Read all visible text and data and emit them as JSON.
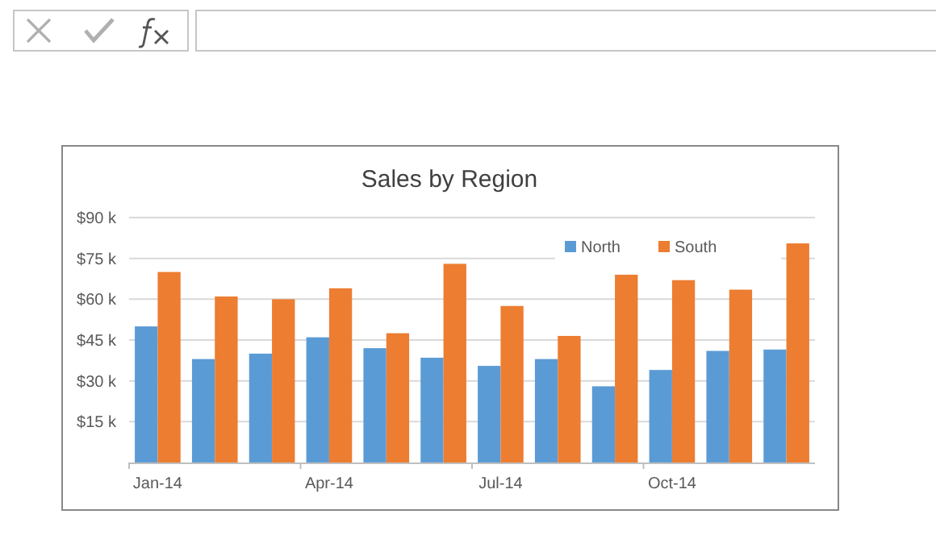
{
  "chart_data": {
    "type": "bar",
    "title": "Sales by Region",
    "categories": [
      "Jan-14",
      null,
      null,
      "Apr-14",
      null,
      null,
      "Jul-14",
      null,
      null,
      "Oct-14",
      null,
      null
    ],
    "series": [
      {
        "name": "North",
        "color": "#5b9bd5",
        "values": [
          50,
          38,
          40,
          46,
          42,
          38.5,
          35.5,
          38,
          28,
          34,
          41,
          41.5
        ]
      },
      {
        "name": "South",
        "color": "#ed7d31",
        "values": [
          70,
          61,
          60,
          64,
          47.5,
          73,
          57.5,
          46.5,
          69,
          67,
          63.5,
          80.5
        ]
      }
    ],
    "ylim": [
      0,
      90
    ],
    "yticks": [
      {
        "value": 15,
        "label": "$15 k"
      },
      {
        "value": 30,
        "label": "$30 k"
      },
      {
        "value": 45,
        "label": "$45 k"
      },
      {
        "value": 60,
        "label": "$60 k"
      },
      {
        "value": 75,
        "label": "$75 k"
      },
      {
        "value": 90,
        "label": "$90 k"
      }
    ],
    "grid": "y",
    "legend": "top right"
  }
}
